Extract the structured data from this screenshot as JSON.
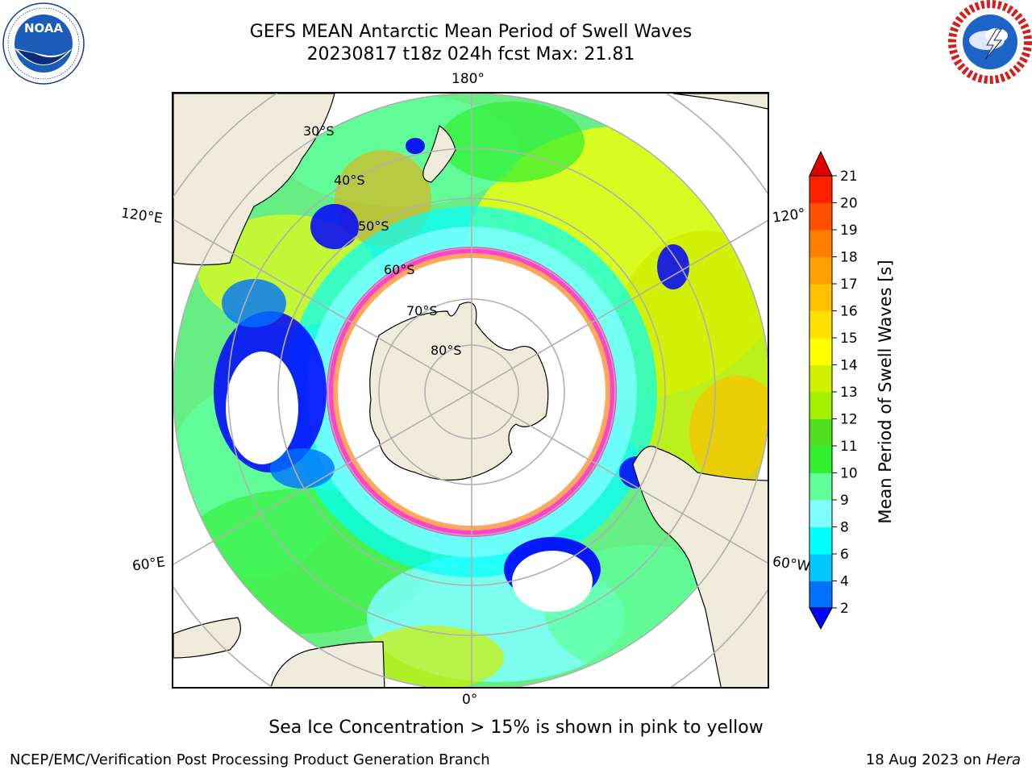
{
  "title": {
    "line1": "GEFS MEAN Antarctic Mean Period of Swell Waves",
    "line2": "20230817 t18z 024h fcst   Max: 21.81"
  },
  "logos": {
    "left": {
      "icon": "noaa-logo-icon",
      "text": "NOAA"
    },
    "right": {
      "icon": "national-weather-service-logo-icon"
    }
  },
  "map": {
    "projection": "south-polar-stereographic",
    "longitude_labels": {
      "top": "180°",
      "left_upper": "120°E",
      "right_upper": "120°",
      "left_lower": "60°E",
      "right_lower": "60°W",
      "bottom": "0°"
    },
    "latitude_labels": [
      "30°S",
      "40°S",
      "50°S",
      "60°S",
      "70°S",
      "80°S"
    ],
    "colors": {
      "land": "#efecdc",
      "ice_edge": "#ff44cc",
      "ice_inner": "#ffffff",
      "grid": "#b0b0b0"
    }
  },
  "colorbar": {
    "title": "Mean Period of Swell Waves [s]",
    "ticks": [
      "2",
      "4",
      "6",
      "8",
      "9",
      "10",
      "11",
      "12",
      "13",
      "14",
      "15",
      "16",
      "17",
      "18",
      "19",
      "20",
      "21"
    ],
    "colors": [
      "#0000ff",
      "#0070ff",
      "#00c8ff",
      "#00ffff",
      "#80ffff",
      "#60ff9c",
      "#30f030",
      "#50e020",
      "#a0f000",
      "#d0f000",
      "#ffff00",
      "#ffe000",
      "#ffc000",
      "#ffa000",
      "#ff8000",
      "#ff5000",
      "#ff2000",
      "#e00000"
    ]
  },
  "caption": "Sea Ice Concentration > 15% is shown in pink to yellow",
  "footer": {
    "left": "NCEP/EMC/Verification Post Processing Product Generation Branch",
    "right_date": "18 Aug 2023 on",
    "right_host": "Hera"
  }
}
